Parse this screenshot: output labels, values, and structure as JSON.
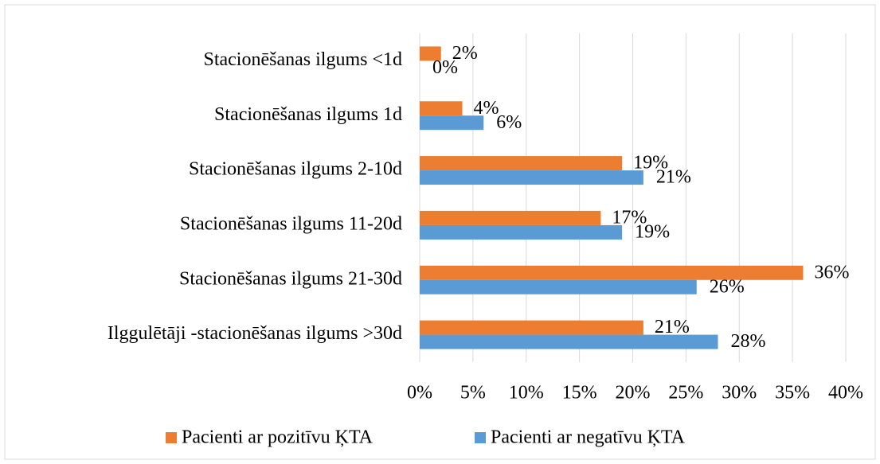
{
  "chart_data": {
    "type": "hbar",
    "categories": [
      "Stacionēšanas ilgums <1d",
      "Stacionēšanas ilgums 1d",
      "Stacionēšanas ilgums 2-10d",
      "Stacionēšanas ilgums 11-20d",
      "Stacionēšanas ilgums 21-30d",
      "Ilggulētāji -stacionēšanas ilgums >30d"
    ],
    "series": [
      {
        "name": "Pacienti ar pozitīvu ĶTA",
        "color": "#ed7d31",
        "values": [
          2,
          4,
          19,
          17,
          36,
          21
        ],
        "value_labels": [
          "2%",
          "4%",
          "19%",
          "17%",
          "36%",
          "21%"
        ]
      },
      {
        "name": "Pacienti ar negatīvu ĶTA",
        "color": "#5b9bd5",
        "values": [
          0,
          6,
          21,
          19,
          26,
          28
        ],
        "value_labels": [
          "0%",
          "6%",
          "21%",
          "19%",
          "26%",
          "28%"
        ]
      }
    ],
    "xlim": [
      0,
      40
    ],
    "xticks": [
      {
        "value": 0,
        "label": "0%"
      },
      {
        "value": 5,
        "label": "5%"
      },
      {
        "value": 10,
        "label": "10%"
      },
      {
        "value": 15,
        "label": "15%"
      },
      {
        "value": 20,
        "label": "20%"
      },
      {
        "value": 25,
        "label": "25%"
      },
      {
        "value": 30,
        "label": "30%"
      },
      {
        "value": 35,
        "label": "35%"
      },
      {
        "value": 40,
        "label": "40%"
      }
    ],
    "grid": true,
    "legend": "bottom"
  }
}
